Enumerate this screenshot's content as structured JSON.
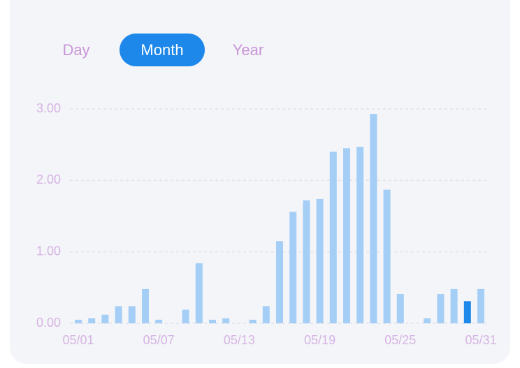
{
  "tabs": [
    {
      "label": "Day",
      "active": false
    },
    {
      "label": "Month",
      "active": true
    },
    {
      "label": "Year",
      "active": false
    }
  ],
  "chart_data": {
    "type": "bar",
    "categories": [
      "05/01",
      null,
      null,
      null,
      null,
      null,
      "05/07",
      null,
      null,
      null,
      null,
      null,
      "05/13",
      null,
      null,
      null,
      null,
      null,
      "05/19",
      null,
      null,
      null,
      null,
      null,
      "05/25",
      null,
      null,
      null,
      null,
      null,
      "05/31"
    ],
    "values": [
      0.05,
      0.07,
      0.12,
      0.24,
      0.24,
      0.48,
      0.05,
      0,
      0.19,
      0.84,
      0.05,
      0.07,
      0,
      0.05,
      0.24,
      1.15,
      1.56,
      1.72,
      1.74,
      2.4,
      2.45,
      2.47,
      2.93,
      1.87,
      0.41,
      0,
      0.07,
      0.41,
      0.48,
      0.31,
      0.48
    ],
    "colors": [
      "#a5cef6",
      "#a5cef6",
      "#a5cef6",
      "#a5cef6",
      "#a5cef6",
      "#a5cef6",
      "#a5cef6",
      "#a5cef6",
      "#a5cef6",
      "#a5cef6",
      "#a5cef6",
      "#a5cef6",
      "#a5cef6",
      "#a5cef6",
      "#a5cef6",
      "#a5cef6",
      "#a5cef6",
      "#a5cef6",
      "#a5cef6",
      "#a5cef6",
      "#a5cef6",
      "#a5cef6",
      "#a5cef6",
      "#a5cef6",
      "#a5cef6",
      "#a5cef6",
      "#a5cef6",
      "#a5cef6",
      "#a5cef6",
      "#1e88ea",
      "#a5cef6"
    ],
    "ylim": [
      0,
      3
    ],
    "yticks": [
      {
        "value": 0,
        "label": "0.00"
      },
      {
        "value": 1,
        "label": "1.00"
      },
      {
        "value": 2,
        "label": "2.00"
      },
      {
        "value": 3,
        "label": "3.00"
      }
    ],
    "grid": true
  }
}
